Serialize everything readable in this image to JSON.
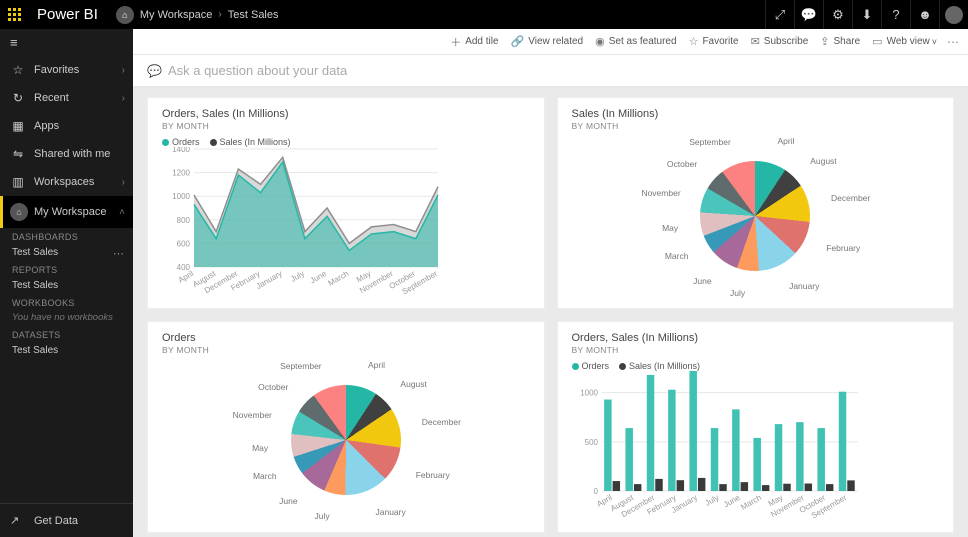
{
  "brand": "Power BI",
  "breadcrumb": {
    "workspace": "My Workspace",
    "item": "Test Sales"
  },
  "top_icons": [
    "edit",
    "chat",
    "gear",
    "download",
    "help",
    "feedback",
    "user"
  ],
  "nav": {
    "items": [
      {
        "icon": "☆",
        "label": "Favorites",
        "chev": true
      },
      {
        "icon": "↻",
        "label": "Recent",
        "chev": true
      },
      {
        "icon": "▦",
        "label": "Apps",
        "chev": false
      },
      {
        "icon": "⇋",
        "label": "Shared with me",
        "chev": false
      },
      {
        "icon": "▥",
        "label": "Workspaces",
        "chev": true
      }
    ],
    "my_workspace": "My Workspace",
    "sections": [
      {
        "header": "DASHBOARDS",
        "links": [
          {
            "label": "Test Sales",
            "dots": true
          }
        ]
      },
      {
        "header": "REPORTS",
        "links": [
          {
            "label": "Test Sales"
          }
        ]
      },
      {
        "header": "WORKBOOKS",
        "note": "You have no workbooks"
      },
      {
        "header": "DATASETS",
        "links": [
          {
            "label": "Test Sales"
          }
        ]
      }
    ],
    "get_data": "Get Data"
  },
  "actions": [
    {
      "icon": "＋",
      "label": "Add tile"
    },
    {
      "icon": "🔗",
      "label": "View related"
    },
    {
      "icon": "◉",
      "label": "Set as featured"
    },
    {
      "icon": "☆",
      "label": "Favorite"
    },
    {
      "icon": "✉",
      "label": "Subscribe"
    },
    {
      "icon": "⇪",
      "label": "Share"
    },
    {
      "icon": "▭",
      "label": "Web view",
      "chev": true
    }
  ],
  "qna_placeholder": "Ask a question about your data",
  "months": [
    "April",
    "August",
    "December",
    "February",
    "January",
    "July",
    "June",
    "March",
    "May",
    "November",
    "October",
    "September"
  ],
  "tile1": {
    "title": "Orders, Sales (In Millions)",
    "subtitle": "BY MONTH",
    "type": "area",
    "legend": [
      {
        "label": "Orders",
        "color": "#24b7a6"
      },
      {
        "label": "Sales (In Millions)",
        "color": "#404040"
      }
    ],
    "ylim": [
      400,
      1400
    ],
    "ytick_step": 200,
    "orders": [
      930,
      640,
      1180,
      1030,
      1290,
      640,
      830,
      540,
      680,
      700,
      640,
      1010
    ],
    "sales": [
      1010,
      700,
      1230,
      1100,
      1330,
      700,
      900,
      600,
      740,
      760,
      700,
      1080
    ],
    "colors": {
      "orders_fill": "#24b7a6",
      "orders_fill_opacity": 0.55,
      "sales_stroke": "#8f8f8f",
      "sales_fill": "#b9b9b9",
      "sales_fill_opacity": 0.55,
      "grid": "#e7e7e7",
      "axis_text": "#999"
    }
  },
  "tile2": {
    "title": "Sales (In Millions)",
    "subtitle": "BY MONTH",
    "type": "pie",
    "colors": [
      "#24b7a6",
      "#404040",
      "#f2c80f",
      "#e0726e",
      "#8ad4eb",
      "#fd9a5e",
      "#a66999",
      "#3699b8",
      "#dfbfbf",
      "#4ac5bb",
      "#5f6b6d",
      "#fb8281"
    ],
    "values": [
      10,
      7,
      12,
      11,
      13,
      7,
      9,
      6,
      7.5,
      8,
      7,
      11
    ],
    "label_color": "#888",
    "label_fontsize": 8.5
  },
  "tile3": {
    "title": "Orders",
    "subtitle": "BY MONTH",
    "type": "pie",
    "colors": [
      "#24b7a6",
      "#404040",
      "#f2c80f",
      "#e0726e",
      "#8ad4eb",
      "#fd9a5e",
      "#a66999",
      "#3699b8",
      "#dfbfbf",
      "#4ac5bb",
      "#5f6b6d",
      "#fb8281"
    ],
    "values": [
      9.3,
      6.4,
      11.8,
      10.3,
      12.9,
      6.4,
      8.3,
      5.4,
      6.8,
      7.0,
      6.4,
      10.1
    ],
    "label_color": "#888",
    "label_fontsize": 8.5
  },
  "tile4": {
    "title": "Orders, Sales (In Millions)",
    "subtitle": "BY MONTH",
    "type": "bar",
    "legend": [
      {
        "label": "Orders",
        "color": "#24b7a6"
      },
      {
        "label": "Sales (In Millions)",
        "color": "#404040"
      }
    ],
    "ylim": [
      0,
      1200
    ],
    "ytick_step": 500,
    "orders": [
      930,
      640,
      1180,
      1030,
      1290,
      640,
      830,
      540,
      680,
      700,
      640,
      1010
    ],
    "sales": [
      101,
      70,
      123,
      110,
      133,
      70,
      90,
      60,
      74,
      76,
      70,
      108
    ],
    "colors": {
      "orders": "#3fc1b3",
      "sales": "#3a3a3a",
      "grid": "#e7e7e7",
      "axis_text": "#999"
    },
    "bar_width": 0.35
  }
}
